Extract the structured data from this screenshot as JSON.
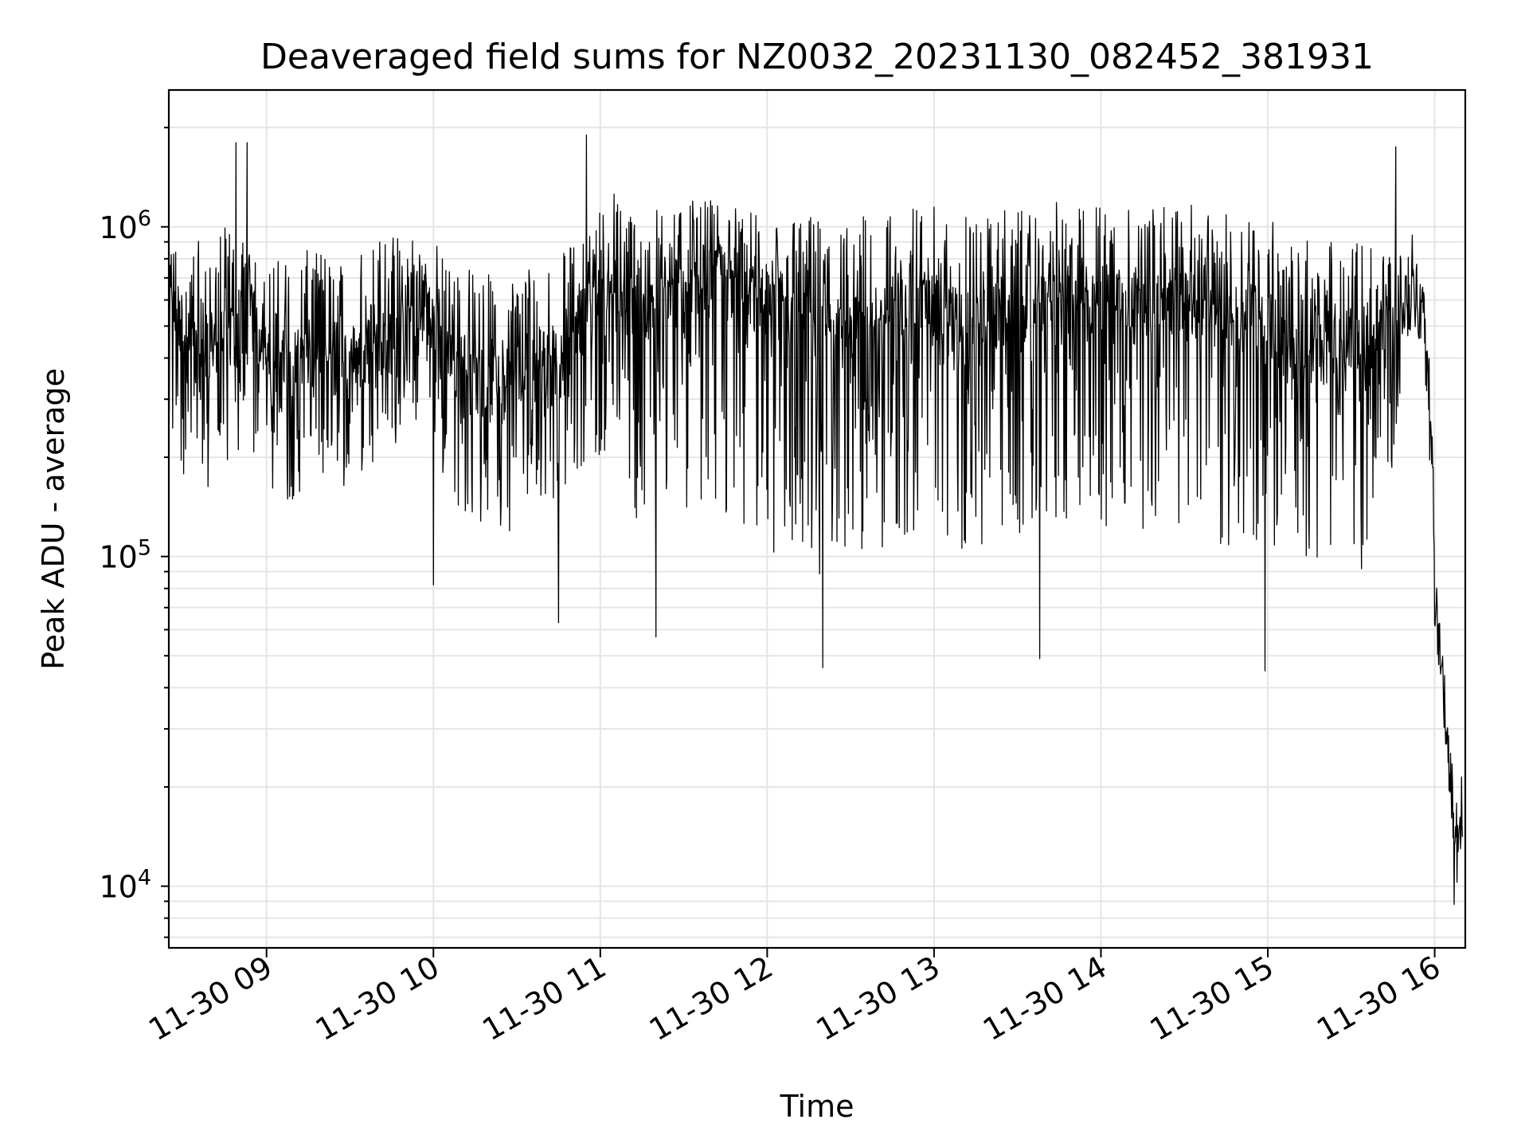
{
  "chart_data": {
    "type": "line",
    "title": "Deaveraged field sums for NZ0032_20231130_082452_381931",
    "xlabel": "Time",
    "ylabel": "Peak ADU - average",
    "yscale": "log",
    "ylim": [
      6500,
      2600000
    ],
    "xlim": [
      "2023-11-30 08:24:52",
      "2023-11-30 16:11:00"
    ],
    "grid": true,
    "line_color": "#000000",
    "grid_color": "#e5e5e5",
    "x_tick_labels": [
      "11-30 09",
      "11-30 10",
      "11-30 11",
      "11-30 12",
      "11-30 13",
      "11-30 14",
      "11-30 15",
      "11-30 16"
    ],
    "y_ticks": [
      {
        "value": 10000,
        "base": "10",
        "exp": "4"
      },
      {
        "value": 100000,
        "base": "10",
        "exp": "5"
      },
      {
        "value": 1000000,
        "base": "10",
        "exp": "6"
      }
    ],
    "series": [
      {
        "x": [
          "2023-11-30 08:25",
          "2023-11-30 08:35",
          "2023-11-30 08:45",
          "2023-11-30 08:55",
          "2023-11-30 09:05",
          "2023-11-30 09:15",
          "2023-11-30 09:25",
          "2023-11-30 09:35",
          "2023-11-30 09:45",
          "2023-11-30 09:55",
          "2023-11-30 10:05",
          "2023-11-30 10:15",
          "2023-11-30 10:25",
          "2023-11-30 10:35",
          "2023-11-30 10:45",
          "2023-11-30 10:55",
          "2023-11-30 11:05",
          "2023-11-30 11:15",
          "2023-11-30 11:25",
          "2023-11-30 11:35",
          "2023-11-30 11:45",
          "2023-11-30 11:55",
          "2023-11-30 12:05",
          "2023-11-30 12:15",
          "2023-11-30 12:25",
          "2023-11-30 12:35",
          "2023-11-30 12:45",
          "2023-11-30 12:55",
          "2023-11-30 13:05",
          "2023-11-30 13:15",
          "2023-11-30 13:25",
          "2023-11-30 13:35",
          "2023-11-30 13:45",
          "2023-11-30 13:55",
          "2023-11-30 14:05",
          "2023-11-30 14:15",
          "2023-11-30 14:25",
          "2023-11-30 14:35",
          "2023-11-30 14:45",
          "2023-11-30 14:55",
          "2023-11-30 15:05",
          "2023-11-30 15:15",
          "2023-11-30 15:25",
          "2023-11-30 15:35",
          "2023-11-30 15:45",
          "2023-11-30 15:52",
          "2023-11-30 15:56",
          "2023-11-30 15:59",
          "2023-11-30 16:00",
          "2023-11-30 16:02",
          "2023-11-30 16:04",
          "2023-11-30 16:06",
          "2023-11-30 16:08",
          "2023-11-30 16:10"
        ],
        "y": [
          550000,
          400000,
          450000,
          500000,
          350000,
          400000,
          380000,
          420000,
          450000,
          600000,
          400000,
          350000,
          300000,
          380000,
          350000,
          550000,
          700000,
          500000,
          650000,
          700000,
          700000,
          600000,
          550000,
          500000,
          450000,
          500000,
          550000,
          600000,
          500000,
          500000,
          550000,
          500000,
          600000,
          550000,
          600000,
          550000,
          600000,
          550000,
          500000,
          550000,
          450000,
          400000,
          450000,
          400000,
          500000,
          700000,
          500000,
          200000,
          80000,
          50000,
          30000,
          18000,
          14000,
          16000
        ],
        "band_low": [
          200000,
          150000,
          180000,
          200000,
          140000,
          160000,
          150000,
          180000,
          200000,
          250000,
          150000,
          130000,
          110000,
          150000,
          130000,
          200000,
          200000,
          110000,
          120000,
          150000,
          130000,
          110000,
          100000,
          90000,
          80000,
          100000,
          110000,
          120000,
          110000,
          100000,
          120000,
          100000,
          130000,
          110000,
          130000,
          110000,
          130000,
          110000,
          100000,
          110000,
          100000,
          90000,
          100000,
          90000,
          180000,
          500000,
          300000,
          120000,
          60000,
          35000,
          25000,
          13000,
          10000,
          12000
        ],
        "band_high": [
          900000,
          900000,
          1000000,
          900000,
          800000,
          850000,
          850000,
          900000,
          950000,
          1000000,
          850000,
          750000,
          700000,
          800000,
          800000,
          1000000,
          1300000,
          1100000,
          1200000,
          1200000,
          1200000,
          1100000,
          1100000,
          1100000,
          1000000,
          1100000,
          1150000,
          1200000,
          1100000,
          1100000,
          1150000,
          1100000,
          1200000,
          1150000,
          1250000,
          1150000,
          1200000,
          1150000,
          1100000,
          1150000,
          1050000,
          900000,
          950000,
          900000,
          900000,
          1000000,
          700000,
          300000,
          100000,
          60000,
          38000,
          24000,
          22000,
          22000
        ],
        "spikes": [
          {
            "x": "2023-11-30 08:49",
            "y": 1800000
          },
          {
            "x": "2023-11-30 08:53",
            "y": 1800000
          },
          {
            "x": "2023-11-30 10:55",
            "y": 1900000
          },
          {
            "x": "2023-11-30 15:46",
            "y": 1750000
          },
          {
            "x": "2023-11-30 12:20",
            "y": 46000
          },
          {
            "x": "2023-11-30 13:38",
            "y": 49000
          },
          {
            "x": "2023-11-30 14:59",
            "y": 45000
          },
          {
            "x": "2023-11-30 16:07",
            "y": 8800
          },
          {
            "x": "2023-11-30 10:00",
            "y": 82000
          },
          {
            "x": "2023-11-30 10:45",
            "y": 63000
          },
          {
            "x": "2023-11-30 11:20",
            "y": 57000
          }
        ]
      }
    ]
  }
}
